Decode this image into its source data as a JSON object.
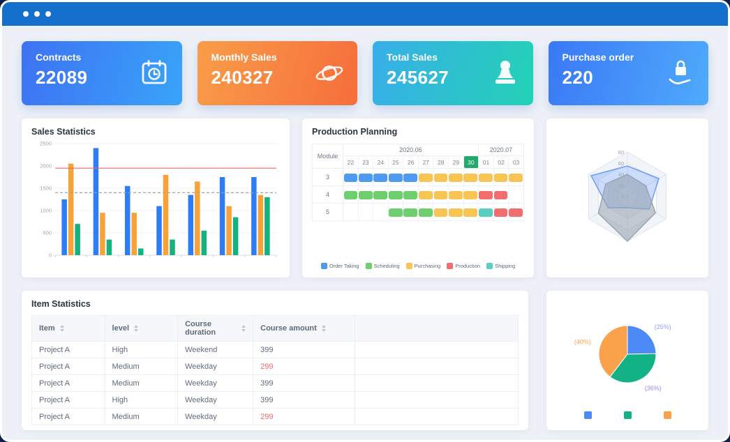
{
  "theme": {
    "titlebar_color": "#1570CB",
    "page_background": "#EDF1F7",
    "frame_background": "#0D1F4E"
  },
  "stat_cards": [
    {
      "label": "Contracts",
      "value": "22089",
      "icon": "calendar-clock-icon",
      "gradient": [
        "#3E72F3",
        "#38A4F8"
      ]
    },
    {
      "label": "Monthly Sales",
      "value": "240327",
      "icon": "planet-icon",
      "gradient": [
        "#F99D49",
        "#F66D3B"
      ]
    },
    {
      "label": "Total Sales",
      "value": "245627",
      "icon": "stamp-icon",
      "gradient": [
        "#38AEE9",
        "#23D2B5"
      ]
    },
    {
      "label": "Purchase order",
      "value": "220",
      "icon": "hand-lock-icon",
      "gradient": [
        "#3A78F6",
        "#4FABFB"
      ]
    }
  ],
  "panels": {
    "sales": {
      "title": "Sales Statistics"
    },
    "production": {
      "title": "Production Planning"
    },
    "items": {
      "title": "Item Statistics"
    }
  },
  "chart_data": [
    {
      "id": "sales_bar",
      "type": "bar",
      "title": "Sales Statistics",
      "categories": [
        "1",
        "2",
        "3",
        "4",
        "5",
        "6",
        "7"
      ],
      "series": [
        {
          "name": "series-blue",
          "color": "#2E7CF6",
          "values": [
            1250,
            2400,
            1550,
            1100,
            1350,
            1750,
            1750
          ]
        },
        {
          "name": "series-orange",
          "color": "#F8A33A",
          "values": [
            2050,
            950,
            950,
            1800,
            1650,
            1100,
            1350
          ]
        },
        {
          "name": "series-green",
          "color": "#14B27E",
          "values": [
            700,
            350,
            150,
            350,
            550,
            850,
            1300
          ]
        }
      ],
      "marklines": [
        {
          "value": 1950,
          "style": "solid",
          "color": "#EE6666"
        },
        {
          "value": 1400,
          "style": "dashed",
          "color": "#9AA3AF"
        }
      ],
      "xlabel": "",
      "ylabel": "",
      "ylim": [
        0,
        2500
      ],
      "yticks": [
        0,
        500,
        1000,
        1500,
        2000,
        2500
      ],
      "grid": true,
      "legend_position": "none"
    },
    {
      "id": "production_gantt",
      "type": "table",
      "title": "Production Planning",
      "module_header": "Module",
      "month_groups": [
        {
          "label": "2020.06",
          "span": 9
        },
        {
          "label": "2020.07",
          "span": 3
        }
      ],
      "days": [
        "22",
        "23",
        "24",
        "25",
        "26",
        "27",
        "28",
        "29",
        "30",
        "01",
        "02",
        "03"
      ],
      "highlight_day": "30",
      "highlight_color": "#23A96B",
      "rows": [
        {
          "module": "3",
          "segments": [
            {
              "type": "order",
              "start": 0,
              "len": 5
            },
            {
              "type": "purchasing",
              "start": 5,
              "len": 7
            }
          ]
        },
        {
          "module": "4",
          "segments": [
            {
              "type": "scheduling",
              "start": 0,
              "len": 5
            },
            {
              "type": "purchasing",
              "start": 5,
              "len": 4
            },
            {
              "type": "production",
              "start": 9,
              "len": 2
            }
          ]
        },
        {
          "module": "5",
          "segments": [
            {
              "type": "scheduling",
              "start": 3,
              "len": 3
            },
            {
              "type": "purchasing",
              "start": 6,
              "len": 3
            },
            {
              "type": "shipping",
              "start": 9,
              "len": 1
            },
            {
              "type": "production",
              "start": 10,
              "len": 2
            }
          ]
        }
      ],
      "legend": [
        {
          "key": "order",
          "label": "Order Taking",
          "color": "#4D9BF1"
        },
        {
          "key": "scheduling",
          "label": "Scheduling",
          "color": "#6FCF6F"
        },
        {
          "key": "purchasing",
          "label": "Purchasing",
          "color": "#F8C555"
        },
        {
          "key": "production",
          "label": "Production",
          "color": "#F26D6D"
        },
        {
          "key": "shipping",
          "label": "Shipping",
          "color": "#58D0BF"
        }
      ],
      "legend_position": "bottom"
    },
    {
      "id": "radar",
      "type": "radar",
      "max": 80,
      "ticks": [
        0,
        20,
        40,
        60,
        80
      ],
      "axes": [
        "",
        "",
        "",
        "",
        "",
        ""
      ],
      "series": [
        {
          "name": "series-blue",
          "color": "#6E9BF7",
          "fill": "rgba(110,155,247,0.35)",
          "values": [
            55,
            65,
            45,
            20,
            40,
            75
          ]
        },
        {
          "name": "series-gray",
          "color": "#9AA5B1",
          "fill": "rgba(154,165,177,0.6)",
          "values": [
            40,
            38,
            58,
            80,
            60,
            45
          ]
        }
      ],
      "grid": true,
      "legend_position": "none"
    },
    {
      "id": "pie",
      "type": "pie",
      "slices": [
        {
          "label": "(25%)",
          "value": 25,
          "color": "#4C8BF5",
          "label_color": "#8FA3F9"
        },
        {
          "label": "(36%)",
          "value": 36,
          "color": "#12B286",
          "label_color": "#A48BF2"
        },
        {
          "label": "(40%)",
          "value": 40,
          "color": "#F9A24B",
          "label_color": "#F9A24B"
        }
      ],
      "legend_colors": [
        "#4C8BF5",
        "#12B286",
        "#F9A24B"
      ],
      "legend_position": "bottom"
    }
  ],
  "item_table": {
    "title": "Item Statistics",
    "columns": [
      {
        "label": "Item",
        "sortable": true
      },
      {
        "label": "level",
        "sortable": true
      },
      {
        "label": "Course duration",
        "sortable": true
      },
      {
        "label": "Course amount",
        "sortable": true
      },
      {
        "label": "",
        "sortable": false
      }
    ],
    "rows": [
      {
        "item": "Project A",
        "level": "High",
        "duration": "Weekend",
        "amount": "399",
        "amount_red": false
      },
      {
        "item": "Project A",
        "level": "Medium",
        "duration": "Weekday",
        "amount": "299",
        "amount_red": true
      },
      {
        "item": "Project A",
        "level": "Medium",
        "duration": "Weekday",
        "amount": "399",
        "amount_red": false
      },
      {
        "item": "Project A",
        "level": "High",
        "duration": "Weekday",
        "amount": "399",
        "amount_red": false
      },
      {
        "item": "Project A",
        "level": "Medium",
        "duration": "Weekday",
        "amount": "299",
        "amount_red": true
      }
    ]
  }
}
